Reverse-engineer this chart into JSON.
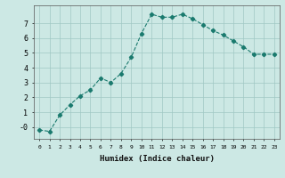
{
  "x": [
    0,
    1,
    2,
    3,
    4,
    5,
    6,
    7,
    8,
    9,
    10,
    11,
    12,
    13,
    14,
    15,
    16,
    17,
    18,
    19,
    20,
    21,
    22,
    23
  ],
  "y": [
    -0.2,
    -0.3,
    0.8,
    1.5,
    2.1,
    2.5,
    3.3,
    3.0,
    3.6,
    4.7,
    6.3,
    7.6,
    7.4,
    7.4,
    7.6,
    7.3,
    6.9,
    6.5,
    6.2,
    5.8,
    5.4,
    4.9,
    4.9,
    4.9
  ],
  "line_color": "#1a7a6e",
  "marker": "D",
  "marker_size": 2.2,
  "bg_color": "#cce8e4",
  "grid_color": "#a0c8c4",
  "xlabel": "Humidex (Indice chaleur)",
  "xlim": [
    -0.5,
    23.5
  ],
  "ylim": [
    -0.8,
    8.2
  ],
  "yticks": [
    0,
    1,
    2,
    3,
    4,
    5,
    6,
    7
  ],
  "ytick_labels": [
    "-0",
    "1",
    "2",
    "3",
    "4",
    "5",
    "6",
    "7"
  ],
  "xtick_labels": [
    "0",
    "1",
    "2",
    "3",
    "4",
    "5",
    "6",
    "7",
    "8",
    "9",
    "10",
    "11",
    "12",
    "13",
    "14",
    "15",
    "16",
    "17",
    "18",
    "19",
    "20",
    "21",
    "22",
    "23"
  ]
}
